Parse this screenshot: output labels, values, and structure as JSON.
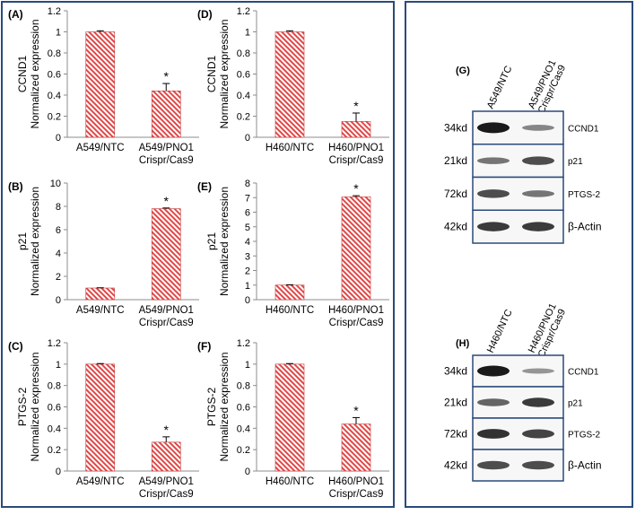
{
  "colors": {
    "frame": "#2a4a7a",
    "bar_stripe": "#e04848",
    "bar_edge": "#c43a3a",
    "axis": "#8c8c8c",
    "band": "#1a1a1a"
  },
  "chart_data": [
    {
      "id": "A",
      "panel_label": "(A)",
      "type": "bar",
      "ylabel": [
        "CCND1",
        "Normalized expression"
      ],
      "categories": [
        [
          "A549/NTC"
        ],
        [
          "A549/PNO1",
          "Crispr/Cas9"
        ]
      ],
      "values": [
        1.0,
        0.44
      ],
      "errors": [
        0.01,
        0.07
      ],
      "significance": [
        "",
        "*"
      ],
      "ylim": [
        0,
        1.2
      ],
      "ticks": [
        0,
        0.2,
        0.4,
        0.6,
        0.8,
        1,
        1.2
      ]
    },
    {
      "id": "B",
      "panel_label": "(B)",
      "type": "bar",
      "ylabel": [
        "p21",
        "Normalized expression"
      ],
      "categories": [
        [
          "A549/NTC"
        ],
        [
          "A549/PNO1",
          "Crispr/Cas9"
        ]
      ],
      "values": [
        1.0,
        7.8
      ],
      "errors": [
        0.02,
        0.06
      ],
      "significance": [
        "",
        "*"
      ],
      "ylim": [
        0,
        10
      ],
      "ticks": [
        0,
        2,
        4,
        6,
        8,
        10
      ]
    },
    {
      "id": "C",
      "panel_label": "(C)",
      "type": "bar",
      "ylabel": [
        "PTGS-2",
        "Normalized expression"
      ],
      "categories": [
        [
          "A549/NTC"
        ],
        [
          "A549/PNO1",
          "Crispr/Cas9"
        ]
      ],
      "values": [
        1.0,
        0.27
      ],
      "errors": [
        0.005,
        0.05
      ],
      "significance": [
        "",
        "*"
      ],
      "ylim": [
        0,
        1.2
      ],
      "ticks": [
        0,
        0.2,
        0.4,
        0.6,
        0.8,
        1,
        1.2
      ]
    },
    {
      "id": "D",
      "panel_label": "(D)",
      "type": "bar",
      "ylabel": [
        "CCND1",
        "Normalized expression"
      ],
      "categories": [
        [
          "H460/NTC"
        ],
        [
          "H460/PNO1",
          "Crispr/Cas9"
        ]
      ],
      "values": [
        1.0,
        0.15
      ],
      "errors": [
        0.01,
        0.08
      ],
      "significance": [
        "",
        "*"
      ],
      "ylim": [
        0,
        1.2
      ],
      "ticks": [
        0,
        0.2,
        0.4,
        0.6,
        0.8,
        1,
        1.2
      ]
    },
    {
      "id": "E",
      "panel_label": "(E)",
      "type": "bar",
      "ylabel": [
        "p21",
        "Normalized expression"
      ],
      "categories": [
        [
          "H460/NTC"
        ],
        [
          "H460/PNO1",
          "Crispr/Cas9"
        ]
      ],
      "values": [
        1.0,
        7.05
      ],
      "errors": [
        0.02,
        0.08
      ],
      "significance": [
        "",
        "*"
      ],
      "ylim": [
        0,
        8
      ],
      "ticks": [
        0,
        1,
        2,
        3,
        4,
        5,
        6,
        7,
        8
      ]
    },
    {
      "id": "F",
      "panel_label": "(F)",
      "type": "bar",
      "ylabel": [
        "PTGS-2",
        "Normalized expression"
      ],
      "categories": [
        [
          "H460/NTC"
        ],
        [
          "H460/PNO1",
          "Crispr/Cas9"
        ]
      ],
      "values": [
        1.0,
        0.44
      ],
      "errors": [
        0.005,
        0.06
      ],
      "significance": [
        "",
        "*"
      ],
      "ylim": [
        0,
        1.2
      ],
      "ticks": [
        0,
        0.2,
        0.4,
        0.6,
        0.8,
        1,
        1.2
      ]
    }
  ],
  "blots": [
    {
      "id": "G",
      "panel_label": "(G)",
      "lanes": [
        "A549/NTC",
        "A549/PNO1 Crispr/Cas9"
      ],
      "rows": [
        {
          "marker": "34kd",
          "protein": "CCND1",
          "intensity": [
            1.0,
            0.35
          ]
        },
        {
          "marker": "21kd",
          "protein": "p21",
          "intensity": [
            0.45,
            0.7
          ]
        },
        {
          "marker": "72kd",
          "protein": "PTGS-2",
          "intensity": [
            0.7,
            0.45
          ]
        },
        {
          "marker": "42kd",
          "protein": "β-Actin",
          "intensity": [
            0.8,
            0.8
          ]
        }
      ]
    },
    {
      "id": "H",
      "panel_label": "(H)",
      "lanes": [
        "H460/NTC",
        "H460/PNO1 Crispr/Cas9"
      ],
      "rows": [
        {
          "marker": "34kd",
          "protein": "CCND1",
          "intensity": [
            1.0,
            0.25
          ]
        },
        {
          "marker": "21kd",
          "protein": "p21",
          "intensity": [
            0.55,
            0.8
          ]
        },
        {
          "marker": "72kd",
          "protein": "PTGS-2",
          "intensity": [
            0.85,
            0.75
          ]
        },
        {
          "marker": "42kd",
          "protein": "β-Actin",
          "intensity": [
            0.7,
            0.7
          ]
        }
      ]
    }
  ]
}
